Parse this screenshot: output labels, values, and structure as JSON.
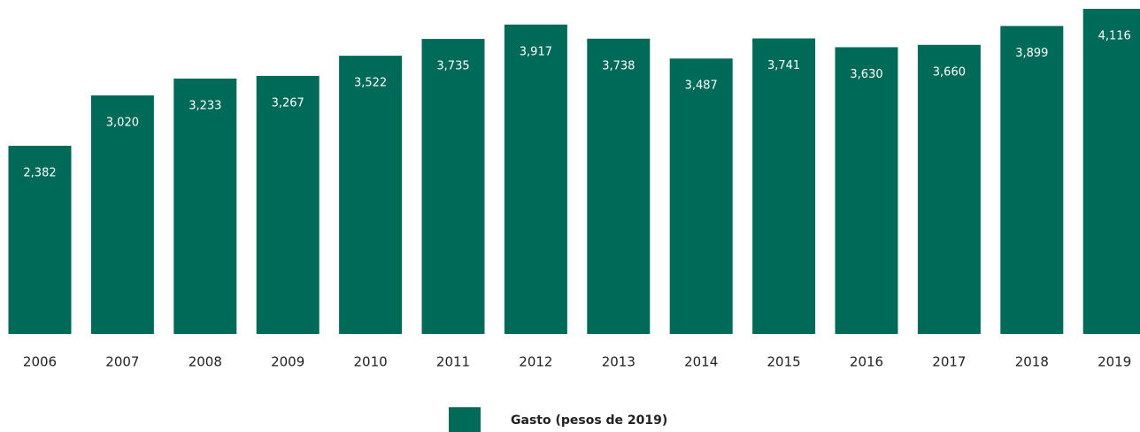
{
  "chart_data": {
    "type": "bar",
    "categories": [
      "2006",
      "2007",
      "2008",
      "2009",
      "2010",
      "2011",
      "2012",
      "2013",
      "2014",
      "2015",
      "2016",
      "2017",
      "2018",
      "2019"
    ],
    "series": [
      {
        "name": "Gasto (pesos de 2019)",
        "color": "#006a58",
        "values": [
          2382,
          3020,
          3233,
          3267,
          3522,
          3735,
          3917,
          3738,
          3487,
          3741,
          3630,
          3660,
          3899,
          4116
        ],
        "value_labels": [
          "2,382",
          "3,020",
          "3,233",
          "3,267",
          "3,522",
          "3,735",
          "3,917",
          "3,738",
          "3,487",
          "3,741",
          "3,630",
          "3,660",
          "3,899",
          "4,116"
        ]
      }
    ],
    "legend": "bottom"
  }
}
